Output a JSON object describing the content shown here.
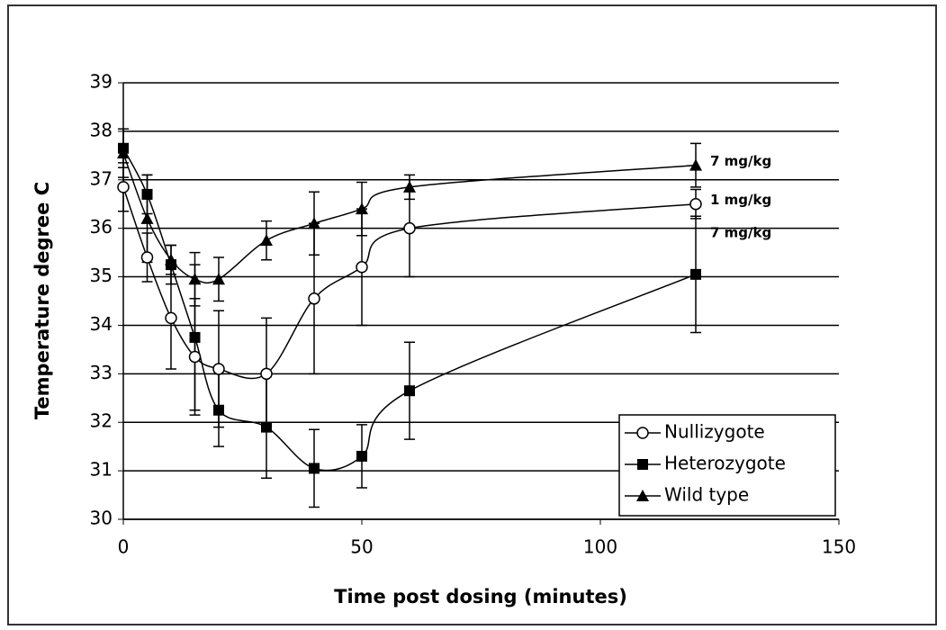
{
  "chart_data": {
    "type": "line",
    "xlabel": "Time post dosing (minutes)",
    "ylabel": "Temperature degree C",
    "x": [
      0,
      5,
      10,
      15,
      20,
      30,
      40,
      50,
      60,
      120
    ],
    "series": [
      {
        "name": "Nullizygote",
        "color": "#000000",
        "marker": "open-circle",
        "values": [
          36.85,
          35.4,
          34.15,
          33.35,
          33.1,
          33.0,
          34.55,
          35.2,
          36.0,
          36.5
        ],
        "errors": [
          0.5,
          0.5,
          1.05,
          1.2,
          1.2,
          1.15,
          1.55,
          1.2,
          1.0,
          0.3
        ]
      },
      {
        "name": "Heterozygote",
        "color": "#000000",
        "marker": "square",
        "values": [
          37.65,
          36.7,
          35.25,
          33.75,
          32.25,
          31.9,
          31.05,
          31.3,
          32.65,
          35.05
        ],
        "errors": [
          0.4,
          0.4,
          0.4,
          1.5,
          0.75,
          1.05,
          0.8,
          0.65,
          1.0,
          1.2
        ]
      },
      {
        "name": "Wild type",
        "color": "#000000",
        "marker": "triangle",
        "values": [
          37.55,
          36.2,
          35.35,
          34.95,
          34.95,
          35.75,
          36.1,
          36.4,
          36.85,
          37.3
        ],
        "errors": [
          0.5,
          0.9,
          0.3,
          0.55,
          0.45,
          0.4,
          0.65,
          0.55,
          0.25,
          0.45
        ]
      }
    ],
    "annotations": [
      {
        "text": "7 mg/kg",
        "series": 2
      },
      {
        "text": "1 mg/kg",
        "series": 0
      },
      {
        "text": "7 mg/kg",
        "series": 1
      }
    ],
    "xlim": [
      0,
      150
    ],
    "xticks": [
      0,
      50,
      100,
      150
    ],
    "ylim": [
      30,
      39
    ],
    "yticks": [
      30,
      31,
      32,
      33,
      34,
      35,
      36,
      37,
      38,
      39
    ],
    "grid": true,
    "legend": "lower right"
  }
}
